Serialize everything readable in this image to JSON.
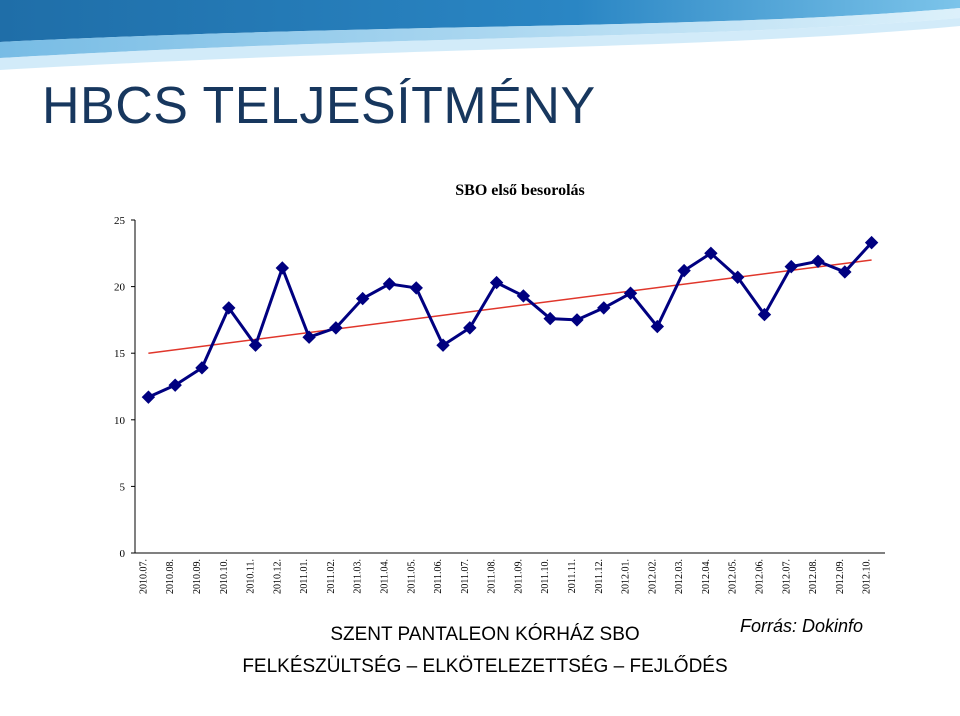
{
  "slide": {
    "title": "HBCS TELJESÍTMÉNY",
    "footer_line1": "SZENT PANTALEON KÓRHÁZ SBO",
    "footer_line2": "FELKÉSZÜLTSÉG – ELKÖTELEZETTSÉG – FEJLŐDÉS",
    "source": "Forrás: Dokinfo"
  },
  "colors": {
    "banner_dark": "#1f6ea8",
    "banner_light": "#5fb0e0",
    "series_line": "#000080",
    "trend_line": "#e0362b",
    "title_text": "#17375e"
  },
  "chart_data": {
    "type": "line",
    "title": "SBO első besorolás",
    "xlabel": "",
    "ylabel": "",
    "ylim": [
      0,
      25
    ],
    "yticks": [
      0,
      5,
      10,
      15,
      20,
      25
    ],
    "grid": false,
    "legend": "none",
    "x": [
      "2010.07.",
      "2010.08.",
      "2010.09.",
      "2010.10.",
      "2010.11.",
      "2010.12.",
      "2011.01.",
      "2011.02.",
      "2011.03.",
      "2011.04.",
      "2011.05.",
      "2011.06.",
      "2011.07.",
      "2011.08.",
      "2011.09.",
      "2011.10.",
      "2011.11.",
      "2011.12.",
      "2012.01.",
      "2012.02.",
      "2012.03.",
      "2012.04.",
      "2012.05.",
      "2012.06.",
      "2012.07.",
      "2012.08.",
      "2012.09.",
      "2012.10."
    ],
    "series": [
      {
        "values": [
          11.7,
          12.6,
          13.9,
          18.4,
          15.6,
          21.4,
          16.2,
          16.9,
          19.1,
          20.2,
          19.9,
          15.6,
          16.9,
          20.3,
          19.3,
          17.6,
          17.5,
          18.4,
          19.5,
          17.0,
          21.2,
          22.5,
          20.7,
          17.9,
          21.5,
          21.9,
          21.1,
          23.3
        ],
        "marker": "diamond"
      }
    ],
    "trendline": {
      "type": "linear",
      "start": 15.0,
      "end": 22.0
    }
  }
}
